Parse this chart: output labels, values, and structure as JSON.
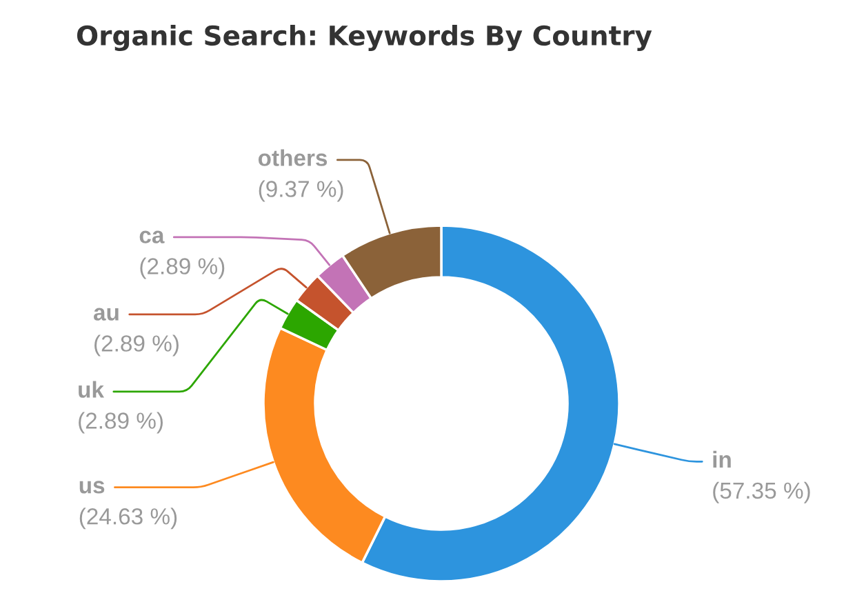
{
  "chart_data": {
    "type": "donut",
    "title": "Organic Search: Keywords By Country",
    "categories": [
      "in",
      "us",
      "uk",
      "au",
      "ca",
      "others"
    ],
    "values": [
      57.35,
      24.63,
      2.89,
      2.89,
      2.89,
      9.37
    ],
    "value_labels": [
      "(57.35 %)",
      "(24.63 %)",
      "(2.89 %)",
      "(2.89 %)",
      "(2.89 %)",
      "(9.37 %)"
    ],
    "colors": [
      "#2d94de",
      "#fd8a20",
      "#2ca600",
      "#c5532d",
      "#c373b6",
      "#8b6239"
    ]
  }
}
